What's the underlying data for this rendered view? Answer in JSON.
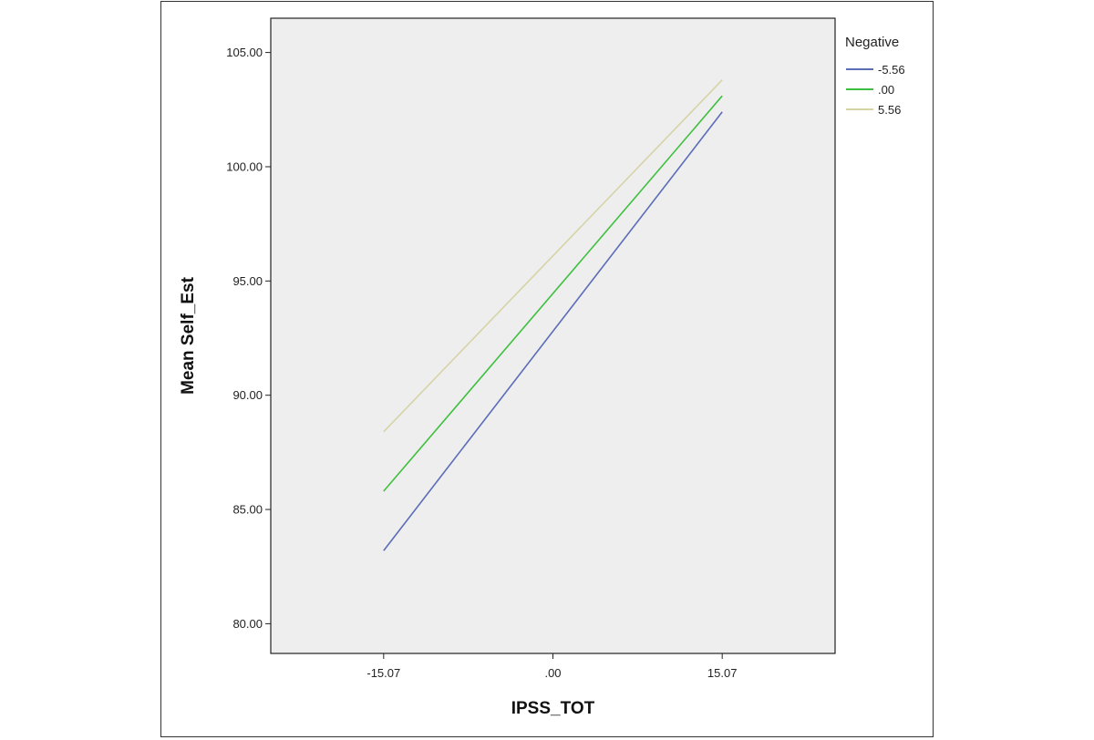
{
  "chart_data": {
    "type": "line",
    "title": "",
    "xlabel": "IPSS_TOT",
    "ylabel": "Mean Self_Est",
    "x_ticks": [
      "-15.07",
      ".00",
      "15.07"
    ],
    "x_tick_values": [
      -15.07,
      0,
      15.07
    ],
    "xlim": [
      -25.12,
      25.12
    ],
    "y_ticks": [
      "80.00",
      "85.00",
      "90.00",
      "95.00",
      "100.00",
      "105.00"
    ],
    "y_tick_values": [
      80,
      85,
      90,
      95,
      100,
      105
    ],
    "ylim": [
      78.7,
      106.5
    ],
    "grid": false,
    "legend": {
      "title": "Negative",
      "position": "right"
    },
    "series": [
      {
        "name": "-5.56",
        "color": "#5b6cb8",
        "x": [
          -15.07,
          15.07
        ],
        "y": [
          83.2,
          102.4
        ]
      },
      {
        "name": ".00",
        "color": "#3fbf3f",
        "x": [
          -15.07,
          15.07
        ],
        "y": [
          85.8,
          103.1
        ]
      },
      {
        "name": "5.56",
        "color": "#d6d3a6",
        "x": [
          -15.07,
          15.07
        ],
        "y": [
          88.4,
          103.8
        ]
      }
    ]
  }
}
